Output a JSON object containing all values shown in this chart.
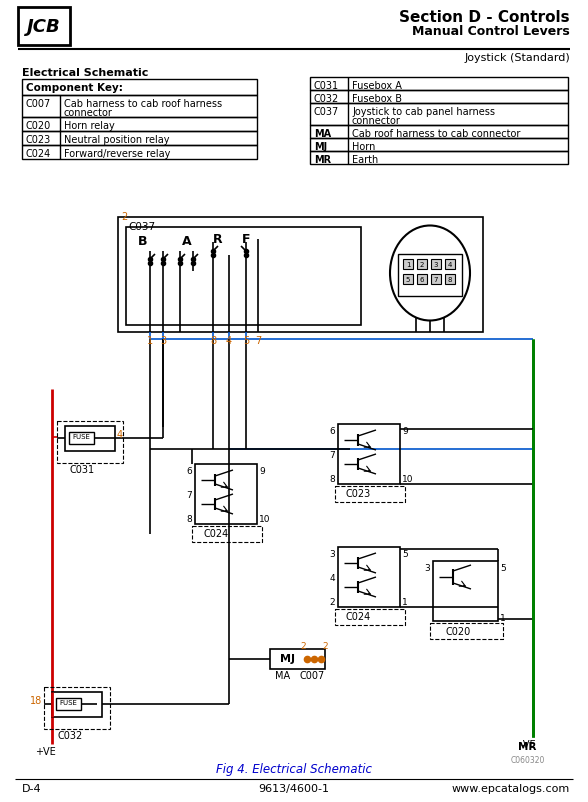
{
  "title1": "Section D - Controls",
  "title2": "Manual Control Levers",
  "subtitle": "Joystick (Standard)",
  "section_label": "Electrical Schematic",
  "table1_header": "Component Key:",
  "table1_rows": [
    [
      "C007",
      "Cab harness to cab roof harness\nconnector"
    ],
    [
      "C020",
      "Horn relay"
    ],
    [
      "C023",
      "Neutral position relay"
    ],
    [
      "C024",
      "Forward/reverse relay"
    ]
  ],
  "table2_rows": [
    [
      "C031",
      "Fusebox A"
    ],
    [
      "C032",
      "Fusebox B"
    ],
    [
      "C037",
      "Joystick to cab panel harness\nconnector"
    ],
    [
      "MA",
      "Cab roof harness to cab connector"
    ],
    [
      "MJ",
      "Horn"
    ],
    [
      "MR",
      "Earth"
    ]
  ],
  "fig_caption": "Fig 4. Electrical Schematic",
  "footer_left": "D-4",
  "footer_mid": "9613/4600-1",
  "footer_right": "www.epcatalogs.com",
  "watermark": "C060320",
  "bg_color": "#ffffff",
  "line_color": "#000000",
  "red_color": "#cc0000",
  "green_color": "#008000",
  "blue_color": "#0055cc",
  "orange_color": "#cc6600"
}
